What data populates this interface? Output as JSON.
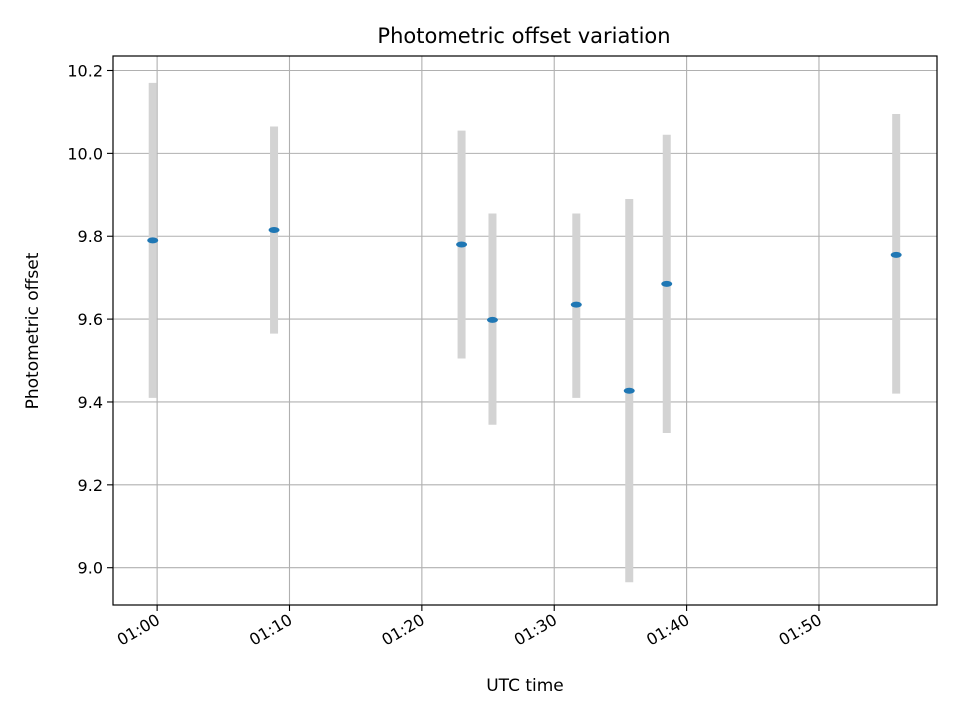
{
  "chart_data": {
    "type": "scatter",
    "title": "Photometric offset variation",
    "xlabel": "UTC time",
    "ylabel": "Photometric offset",
    "x_unit": "time of day",
    "xlim": [
      "00:56:40",
      "01:58:55"
    ],
    "ylim": [
      8.91,
      10.235
    ],
    "x_ticks": [
      "01:00",
      "01:10",
      "01:20",
      "01:30",
      "01:40",
      "01:50"
    ],
    "y_ticks": [
      "9.0",
      "9.2",
      "9.4",
      "9.6",
      "9.8",
      "10.0",
      "10.2"
    ],
    "grid": true,
    "colors": {
      "point": "#1f77b4",
      "errorbar": "#d3d3d3",
      "grid": "#b0b0b0"
    },
    "points": [
      {
        "x": "00:59:40",
        "y": 9.79,
        "ylow": 9.41,
        "yhigh": 10.17
      },
      {
        "x": "01:08:50",
        "y": 9.815,
        "ylow": 9.565,
        "yhigh": 10.065
      },
      {
        "x": "01:23:00",
        "y": 9.78,
        "ylow": 9.505,
        "yhigh": 10.055
      },
      {
        "x": "01:25:20",
        "y": 9.598,
        "ylow": 9.345,
        "yhigh": 9.855
      },
      {
        "x": "01:31:40",
        "y": 9.635,
        "ylow": 9.41,
        "yhigh": 9.855
      },
      {
        "x": "01:35:40",
        "y": 9.427,
        "ylow": 8.965,
        "yhigh": 9.89
      },
      {
        "x": "01:38:30",
        "y": 9.685,
        "ylow": 9.325,
        "yhigh": 10.045
      },
      {
        "x": "01:55:50",
        "y": 9.755,
        "ylow": 9.42,
        "yhigh": 10.095
      }
    ]
  }
}
